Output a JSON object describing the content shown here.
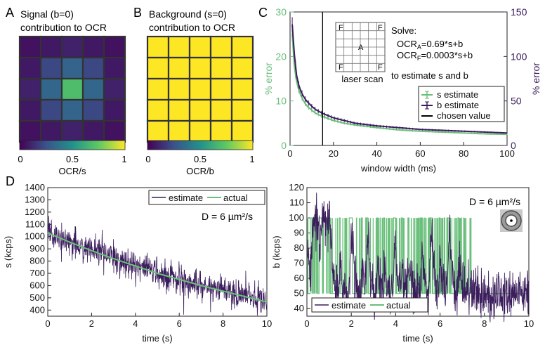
{
  "panels": {
    "A": {
      "letter": "A",
      "title_line1": "Signal (b=0)",
      "title_line2": "contribution to OCR",
      "colorbar_ticks": [
        "0",
        "0.5",
        "1"
      ],
      "colorbar_label": "OCR/s"
    },
    "B": {
      "letter": "B",
      "title_line1": "Background (s=0)",
      "title_line2": "contribution to OCR",
      "colorbar_ticks": [
        "0",
        "0.5",
        "1"
      ],
      "colorbar_label": "OCR/b"
    },
    "C": {
      "letter": "C",
      "inset": {
        "corner_labels": [
          "F",
          "F",
          "F",
          "F"
        ],
        "center_label": "A",
        "caption": "laser scan",
        "solve_title": "Solve:",
        "eq_a_lhs": "OCR",
        "eq_a_sub": "A",
        "eq_a_rhs": "=0.69*s+b",
        "eq_f_lhs": "OCR",
        "eq_f_sub": "F",
        "eq_f_rhs": "=0.0003*s+b",
        "estimate_note": "to estimate s and b"
      }
    },
    "D": {
      "letter": "D",
      "left_annotation": "D = 6 µm²/s",
      "right_annotation": "D = 6 µm²/s"
    }
  },
  "colors": {
    "green": "#6abf7b",
    "purple": "#3b1d5c",
    "black": "#000000",
    "cell_border": "#333333",
    "inset_gray": "#b3b3b3",
    "inset_dark": "#4a4a4a"
  },
  "chart_data": [
    {
      "id": "A-heatmap",
      "type": "heatmap",
      "colormap": "viridis",
      "rows": 5,
      "cols": 5,
      "values": [
        [
          0.05,
          0.07,
          0.1,
          0.07,
          0.05
        ],
        [
          0.07,
          0.22,
          0.32,
          0.22,
          0.07
        ],
        [
          0.1,
          0.33,
          0.69,
          0.33,
          0.1
        ],
        [
          0.07,
          0.22,
          0.32,
          0.22,
          0.07
        ],
        [
          0.05,
          0.07,
          0.1,
          0.07,
          0.05
        ]
      ],
      "zlim": [
        0,
        1
      ]
    },
    {
      "id": "B-heatmap",
      "type": "heatmap",
      "colormap": "viridis",
      "rows": 5,
      "cols": 5,
      "values": [
        [
          1,
          1,
          1,
          1,
          1
        ],
        [
          1,
          1,
          1,
          1,
          1
        ],
        [
          1,
          1,
          1,
          1,
          1
        ],
        [
          1,
          1,
          1,
          1,
          1
        ],
        [
          1,
          1,
          1,
          1,
          1
        ]
      ],
      "zlim": [
        0,
        1
      ]
    },
    {
      "id": "C-error",
      "type": "line",
      "xlabel": "window width (ms)",
      "ylabel_left": "% error",
      "ylabel_right": "% error",
      "xlim": [
        0,
        100
      ],
      "ylim_left": [
        0,
        30
      ],
      "ylim_right": [
        0,
        150
      ],
      "xticks": [
        0,
        20,
        40,
        60,
        80,
        100
      ],
      "yticks_left": [
        0,
        10,
        20,
        30
      ],
      "yticks_right": [
        0,
        50,
        100,
        150
      ],
      "x": [
        1,
        2,
        3,
        4,
        5,
        6,
        7,
        8,
        10,
        12,
        15,
        20,
        25,
        30,
        40,
        50,
        60,
        70,
        80,
        90,
        100
      ],
      "series": [
        {
          "name": "s estimate",
          "axis": "left",
          "color": "#6abf7b",
          "values": [
            25.0,
            17.7,
            14.4,
            12.5,
            11.2,
            10.2,
            9.4,
            8.8,
            7.9,
            7.2,
            6.5,
            5.6,
            5.0,
            4.6,
            4.0,
            3.5,
            3.2,
            3.0,
            2.8,
            2.6,
            2.5
          ]
        },
        {
          "name": "b estimate",
          "axis": "right",
          "color": "#3b1d5c",
          "values": [
            136,
            102,
            79,
            68,
            61,
            56,
            52,
            49,
            44,
            40,
            36,
            31,
            28,
            25,
            22,
            20,
            18,
            17,
            16,
            15,
            14
          ]
        }
      ],
      "vline": {
        "name": "chosen value",
        "x": 15,
        "color": "#000000"
      },
      "legend": [
        "s estimate",
        "b estimate",
        "chosen value"
      ],
      "legend_position": "right"
    },
    {
      "id": "D-left",
      "type": "line",
      "xlabel": "time (s)",
      "ylabel": "s (kcps)",
      "xlim": [
        0,
        10
      ],
      "ylim": [
        350,
        1400
      ],
      "xticks": [
        0,
        2,
        4,
        6,
        8,
        10
      ],
      "yticks": [
        400,
        500,
        600,
        700,
        800,
        900,
        1000,
        1100,
        1200,
        1300,
        1400
      ],
      "series": [
        {
          "name": "estimate",
          "color": "#3b1d5c",
          "noise_sd": 60,
          "x": [
            0,
            1,
            2,
            3,
            4,
            5,
            6,
            7,
            8,
            9,
            10
          ],
          "values": [
            1035,
            960,
            890,
            825,
            765,
            705,
            655,
            605,
            560,
            515,
            470
          ]
        },
        {
          "name": "actual",
          "color": "#6abf7b",
          "x": [
            0,
            1,
            2,
            3,
            4,
            5,
            6,
            7,
            8,
            9,
            10
          ],
          "values": [
            1030,
            955,
            885,
            820,
            760,
            700,
            650,
            600,
            555,
            510,
            465
          ]
        }
      ],
      "legend": [
        "estimate",
        "actual"
      ],
      "legend_position": "top-right"
    },
    {
      "id": "D-right",
      "type": "line",
      "xlabel": "time (s)",
      "ylabel": "b (kcps)",
      "xlim": [
        0,
        10
      ],
      "ylim": [
        35,
        120
      ],
      "xticks": [
        0,
        2,
        4,
        6,
        8,
        10
      ],
      "yticks": [
        40,
        50,
        60,
        70,
        80,
        90,
        100,
        110,
        120
      ],
      "series": [
        {
          "name": "actual",
          "color": "#6abf7b",
          "kind": "telegraph",
          "levels": [
            50,
            100
          ],
          "switch_times": [
            0.05,
            0.15,
            0.5,
            0.55,
            1.05,
            1.45,
            1.5,
            1.9,
            2.05,
            2.45,
            2.5,
            2.65,
            2.75,
            3.15,
            3.2,
            3.45,
            3.5,
            3.9,
            4.0,
            4.25,
            4.3,
            4.55,
            4.6,
            5.1,
            5.2,
            5.5,
            5.65,
            5.95,
            6.0,
            6.3,
            6.45,
            6.8,
            6.85,
            7.4
          ],
          "end_level": 50
        },
        {
          "name": "estimate",
          "color": "#3b1d5c",
          "noise_sd": 8,
          "tracks": "actual"
        }
      ],
      "legend": [
        "estimate",
        "actual"
      ],
      "legend_position": "bottom-left"
    }
  ]
}
